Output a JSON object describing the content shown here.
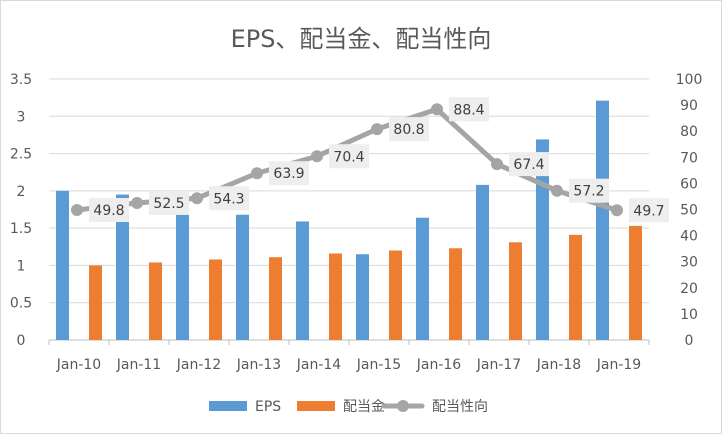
{
  "chart_data": {
    "type": "bar",
    "title": "EPS、配当金、配当性向",
    "categories": [
      "Jan-10",
      "Jan-11",
      "Jan-12",
      "Jan-13",
      "Jan-14",
      "Jan-15",
      "Jan-16",
      "Jan-17",
      "Jan-18",
      "Jan-19"
    ],
    "series": [
      {
        "name": "EPS",
        "type": "bar",
        "axis": "left",
        "color": "#5b9bd5",
        "values": [
          2.0,
          1.95,
          1.93,
          1.68,
          1.59,
          1.15,
          1.64,
          2.08,
          2.69,
          3.21
        ]
      },
      {
        "name": "配当金",
        "type": "bar",
        "axis": "left",
        "color": "#ed7d31",
        "values": [
          1.0,
          1.04,
          1.08,
          1.11,
          1.16,
          1.2,
          1.23,
          1.31,
          1.41,
          1.53
        ]
      },
      {
        "name": "配当性向",
        "type": "line",
        "axis": "right",
        "color": "#a5a5a5",
        "values": [
          49.8,
          52.5,
          54.3,
          63.9,
          70.4,
          80.8,
          88.4,
          67.4,
          57.2,
          49.7
        ]
      }
    ],
    "left_axis": {
      "ylim": [
        0,
        3.5
      ],
      "ticks": [
        "0",
        "0.5",
        "1",
        "1.5",
        "2",
        "2.5",
        "3",
        "3.5"
      ]
    },
    "right_axis": {
      "ylim": [
        0,
        100
      ],
      "ticks": [
        "0",
        "10",
        "20",
        "30",
        "40",
        "50",
        "60",
        "70",
        "80",
        "90",
        "100"
      ]
    },
    "grid": true,
    "legend_position": "bottom"
  }
}
